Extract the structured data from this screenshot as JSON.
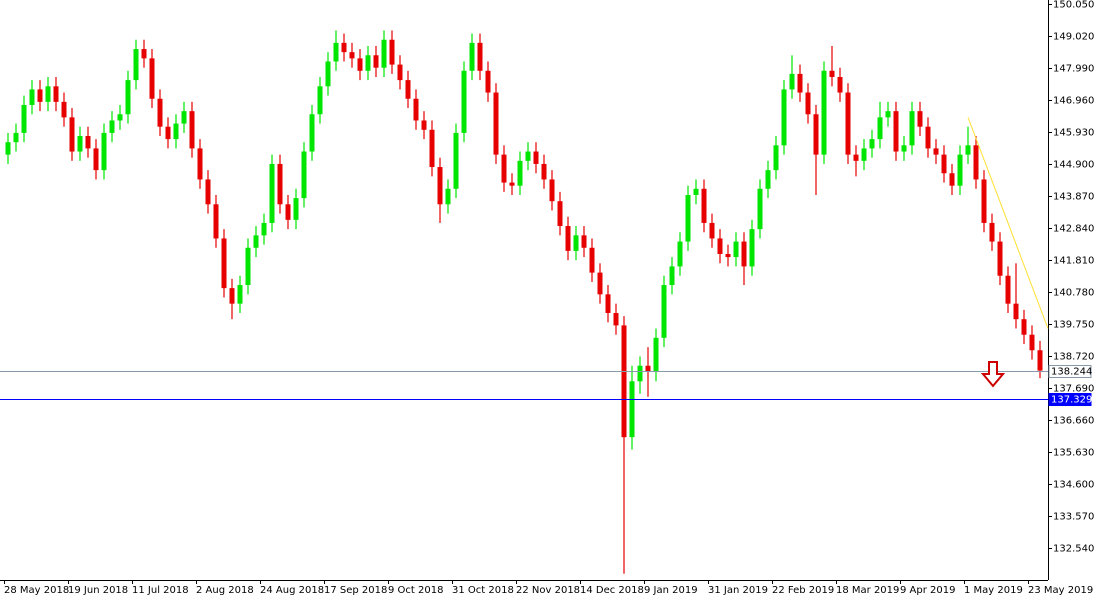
{
  "chart_data": {
    "type": "candlestick",
    "categories": [
      "28 May 2018",
      null,
      null,
      null,
      null,
      null,
      null,
      null,
      "19 Jun 2018",
      null,
      null,
      null,
      null,
      null,
      null,
      null,
      "11 Jul 2018",
      null,
      null,
      null,
      null,
      null,
      null,
      null,
      "2 Aug 2018",
      null,
      null,
      null,
      null,
      null,
      null,
      null,
      "24 Aug 2018",
      null,
      null,
      null,
      null,
      null,
      null,
      null,
      "17 Sep 2018",
      null,
      null,
      null,
      null,
      null,
      null,
      null,
      "9 Oct 2018",
      null,
      null,
      null,
      null,
      null,
      null,
      null,
      "31 Oct 2018",
      null,
      null,
      null,
      null,
      null,
      null,
      null,
      "22 Nov 2018",
      null,
      null,
      null,
      null,
      null,
      null,
      null,
      "14 Dec 2018",
      null,
      null,
      null,
      null,
      null,
      null,
      null,
      "9 Jan 2019",
      null,
      null,
      null,
      null,
      null,
      null,
      null,
      "31 Jan 2019",
      null,
      null,
      null,
      null,
      null,
      null,
      null,
      "22 Feb 2019",
      null,
      null,
      null,
      null,
      null,
      null,
      null,
      "18 Mar 2019",
      null,
      null,
      null,
      null,
      null,
      null,
      null,
      "9 Apr 2019",
      null,
      null,
      null,
      null,
      null,
      null,
      null,
      "1 May 2019",
      null,
      null,
      null,
      null,
      null,
      null,
      null,
      "23 May 2019",
      null
    ],
    "open": [
      145.2,
      145.6,
      145.9,
      146.8,
      147.3,
      146.9,
      147.4,
      146.9,
      146.4,
      145.3,
      145.8,
      145.4,
      144.7,
      145.9,
      146.3,
      146.5,
      147.6,
      148.6,
      148.3,
      147.0,
      146.1,
      145.7,
      146.2,
      146.6,
      145.4,
      144.4,
      143.6,
      142.5,
      140.9,
      140.4,
      141.0,
      142.2,
      142.6,
      143.0,
      144.9,
      143.6,
      143.1,
      143.8,
      145.3,
      146.5,
      147.4,
      148.2,
      148.8,
      148.5,
      148.3,
      147.9,
      148.4,
      148.0,
      148.9,
      148.1,
      147.6,
      147.0,
      146.3,
      146.0,
      144.8,
      143.6,
      144.1,
      145.9,
      147.9,
      148.8,
      147.9,
      147.2,
      145.2,
      144.3,
      144.2,
      145.0,
      145.3,
      144.9,
      144.4,
      143.7,
      142.9,
      142.1,
      142.6,
      142.2,
      141.4,
      140.7,
      140.1,
      139.7,
      136.1,
      137.9,
      138.4,
      138.2,
      139.3,
      141.0,
      141.6,
      142.4,
      143.9,
      144.1,
      143.0,
      142.5,
      142.0,
      141.9,
      142.4,
      141.6,
      142.8,
      144.1,
      144.7,
      145.5,
      147.3,
      147.8,
      147.2,
      146.5,
      145.2,
      147.9,
      147.7,
      147.2,
      145.2,
      145.0,
      145.4,
      145.7,
      146.4,
      146.6,
      145.3,
      145.5,
      146.6,
      146.1,
      145.4,
      145.2,
      144.6,
      144.2,
      145.2,
      145.5,
      144.4,
      143.0,
      142.4,
      141.3,
      140.4,
      139.9,
      139.4,
      138.9
    ],
    "high": [
      145.9,
      146.2,
      147.1,
      147.6,
      147.6,
      147.7,
      147.7,
      147.2,
      146.7,
      146.1,
      146.1,
      145.7,
      146.2,
      146.6,
      146.8,
      147.9,
      148.9,
      148.9,
      148.6,
      147.3,
      146.4,
      146.5,
      146.9,
      146.9,
      145.7,
      144.7,
      143.9,
      142.8,
      141.2,
      141.3,
      142.5,
      142.9,
      143.3,
      145.2,
      145.2,
      143.9,
      144.1,
      145.6,
      146.8,
      147.7,
      148.5,
      149.2,
      149.1,
      148.8,
      148.6,
      148.7,
      148.7,
      149.2,
      149.2,
      148.4,
      147.9,
      147.3,
      146.6,
      146.3,
      145.1,
      144.4,
      146.2,
      148.2,
      149.1,
      149.1,
      148.2,
      147.5,
      145.5,
      144.6,
      145.3,
      145.6,
      145.6,
      145.2,
      144.7,
      144.0,
      143.2,
      142.9,
      142.9,
      142.5,
      141.7,
      141.0,
      140.4,
      140.0,
      138.4,
      138.7,
      139.0,
      139.6,
      141.3,
      141.9,
      142.7,
      144.2,
      144.4,
      144.4,
      143.3,
      142.8,
      142.3,
      142.7,
      142.7,
      143.1,
      144.4,
      145.0,
      145.8,
      147.6,
      148.4,
      148.1,
      147.5,
      146.8,
      148.2,
      148.7,
      148.0,
      147.5,
      145.5,
      145.7,
      146.0,
      146.9,
      146.9,
      146.9,
      145.8,
      146.9,
      146.9,
      146.4,
      145.7,
      145.5,
      144.9,
      145.5,
      146.1,
      145.8,
      144.7,
      143.3,
      142.7,
      141.6,
      141.7,
      140.2,
      139.7,
      139.2
    ],
    "low": [
      144.9,
      145.3,
      145.6,
      146.5,
      146.6,
      146.6,
      146.6,
      146.1,
      145.0,
      145.0,
      145.1,
      144.4,
      144.4,
      145.6,
      146.0,
      146.2,
      147.3,
      148.0,
      146.7,
      145.8,
      145.4,
      145.4,
      145.9,
      145.1,
      144.1,
      143.3,
      142.2,
      140.6,
      139.9,
      140.1,
      140.7,
      141.9,
      142.3,
      142.7,
      143.3,
      142.8,
      142.8,
      143.5,
      145.0,
      146.2,
      147.1,
      147.9,
      148.2,
      148.0,
      147.6,
      147.6,
      147.7,
      147.7,
      147.8,
      147.3,
      146.7,
      146.0,
      145.7,
      144.5,
      143.0,
      143.3,
      143.8,
      145.6,
      147.6,
      147.6,
      146.9,
      144.9,
      144.0,
      143.9,
      143.9,
      144.7,
      144.6,
      144.1,
      143.4,
      142.6,
      141.8,
      141.8,
      141.9,
      141.1,
      140.4,
      139.8,
      139.4,
      131.7,
      135.7,
      137.5,
      137.4,
      137.9,
      139.0,
      140.7,
      141.3,
      142.1,
      143.6,
      142.7,
      142.2,
      141.7,
      141.6,
      141.6,
      141.0,
      141.3,
      142.5,
      143.8,
      144.4,
      145.2,
      147.0,
      146.9,
      146.2,
      143.9,
      144.9,
      147.4,
      146.9,
      144.9,
      144.5,
      144.7,
      145.1,
      145.4,
      146.1,
      145.0,
      145.0,
      145.2,
      145.8,
      145.1,
      144.9,
      144.3,
      143.9,
      143.9,
      144.9,
      144.1,
      142.7,
      142.1,
      141.0,
      140.1,
      139.6,
      139.1,
      138.6,
      138.0
    ],
    "close": [
      145.6,
      145.9,
      146.8,
      147.3,
      146.9,
      147.4,
      146.9,
      146.4,
      145.3,
      145.8,
      145.4,
      144.7,
      145.9,
      146.3,
      146.5,
      147.6,
      148.6,
      148.3,
      147.0,
      146.1,
      145.7,
      146.2,
      146.6,
      145.4,
      144.4,
      143.6,
      142.5,
      140.9,
      140.4,
      141.0,
      142.2,
      142.6,
      143.0,
      144.9,
      143.6,
      143.1,
      143.8,
      145.3,
      146.5,
      147.4,
      148.2,
      148.8,
      148.5,
      148.3,
      147.9,
      148.4,
      148.0,
      148.9,
      148.1,
      147.6,
      147.0,
      146.3,
      146.0,
      144.8,
      143.6,
      144.1,
      145.9,
      147.9,
      148.8,
      147.9,
      147.2,
      145.2,
      144.3,
      144.2,
      145.0,
      145.3,
      144.9,
      144.4,
      143.7,
      142.9,
      142.1,
      142.6,
      142.2,
      141.4,
      140.7,
      140.1,
      139.7,
      136.1,
      137.9,
      138.4,
      138.2,
      139.3,
      141.0,
      141.6,
      142.4,
      143.9,
      144.1,
      143.0,
      142.5,
      142.0,
      141.9,
      142.4,
      141.6,
      142.8,
      144.1,
      144.7,
      145.5,
      147.3,
      147.8,
      147.2,
      146.5,
      145.2,
      147.9,
      147.7,
      147.2,
      145.2,
      145.0,
      145.4,
      145.7,
      146.4,
      146.6,
      145.3,
      145.5,
      146.6,
      146.1,
      145.4,
      145.2,
      144.6,
      144.2,
      145.2,
      145.5,
      144.4,
      143.0,
      142.4,
      141.3,
      140.4,
      139.9,
      139.4,
      138.9,
      138.244
    ],
    "up_color": "#00e600",
    "down_color": "#e60000",
    "ylim": [
      131.5,
      150.18
    ],
    "yticks": [
      {
        "value": 150.05,
        "label": "150.050"
      },
      {
        "value": 149.02,
        "label": "149.020"
      },
      {
        "value": 147.99,
        "label": "147.990"
      },
      {
        "value": 146.96,
        "label": "146.960"
      },
      {
        "value": 145.93,
        "label": "145.930"
      },
      {
        "value": 144.9,
        "label": "144.900"
      },
      {
        "value": 143.87,
        "label": "143.870"
      },
      {
        "value": 142.84,
        "label": "142.840"
      },
      {
        "value": 141.81,
        "label": "141.810"
      },
      {
        "value": 140.78,
        "label": "140.780"
      },
      {
        "value": 139.75,
        "label": "139.750"
      },
      {
        "value": 138.72,
        "label": "138.720"
      },
      {
        "value": 137.69,
        "label": "137.690"
      },
      {
        "value": 136.66,
        "label": "136.660"
      },
      {
        "value": 135.63,
        "label": "135.630"
      },
      {
        "value": 134.6,
        "label": "134.600"
      },
      {
        "value": 133.57,
        "label": "133.570"
      },
      {
        "value": 132.54,
        "label": "132.540"
      }
    ],
    "current_price": 138.244,
    "current_color": "#8899aa",
    "level": 137.329,
    "level_color": "#0000ff",
    "trendline": {
      "from": {
        "index": 120,
        "price": 146.4
      },
      "to": {
        "index": 130,
        "price": 139.6
      },
      "color": "#ffe033"
    }
  }
}
